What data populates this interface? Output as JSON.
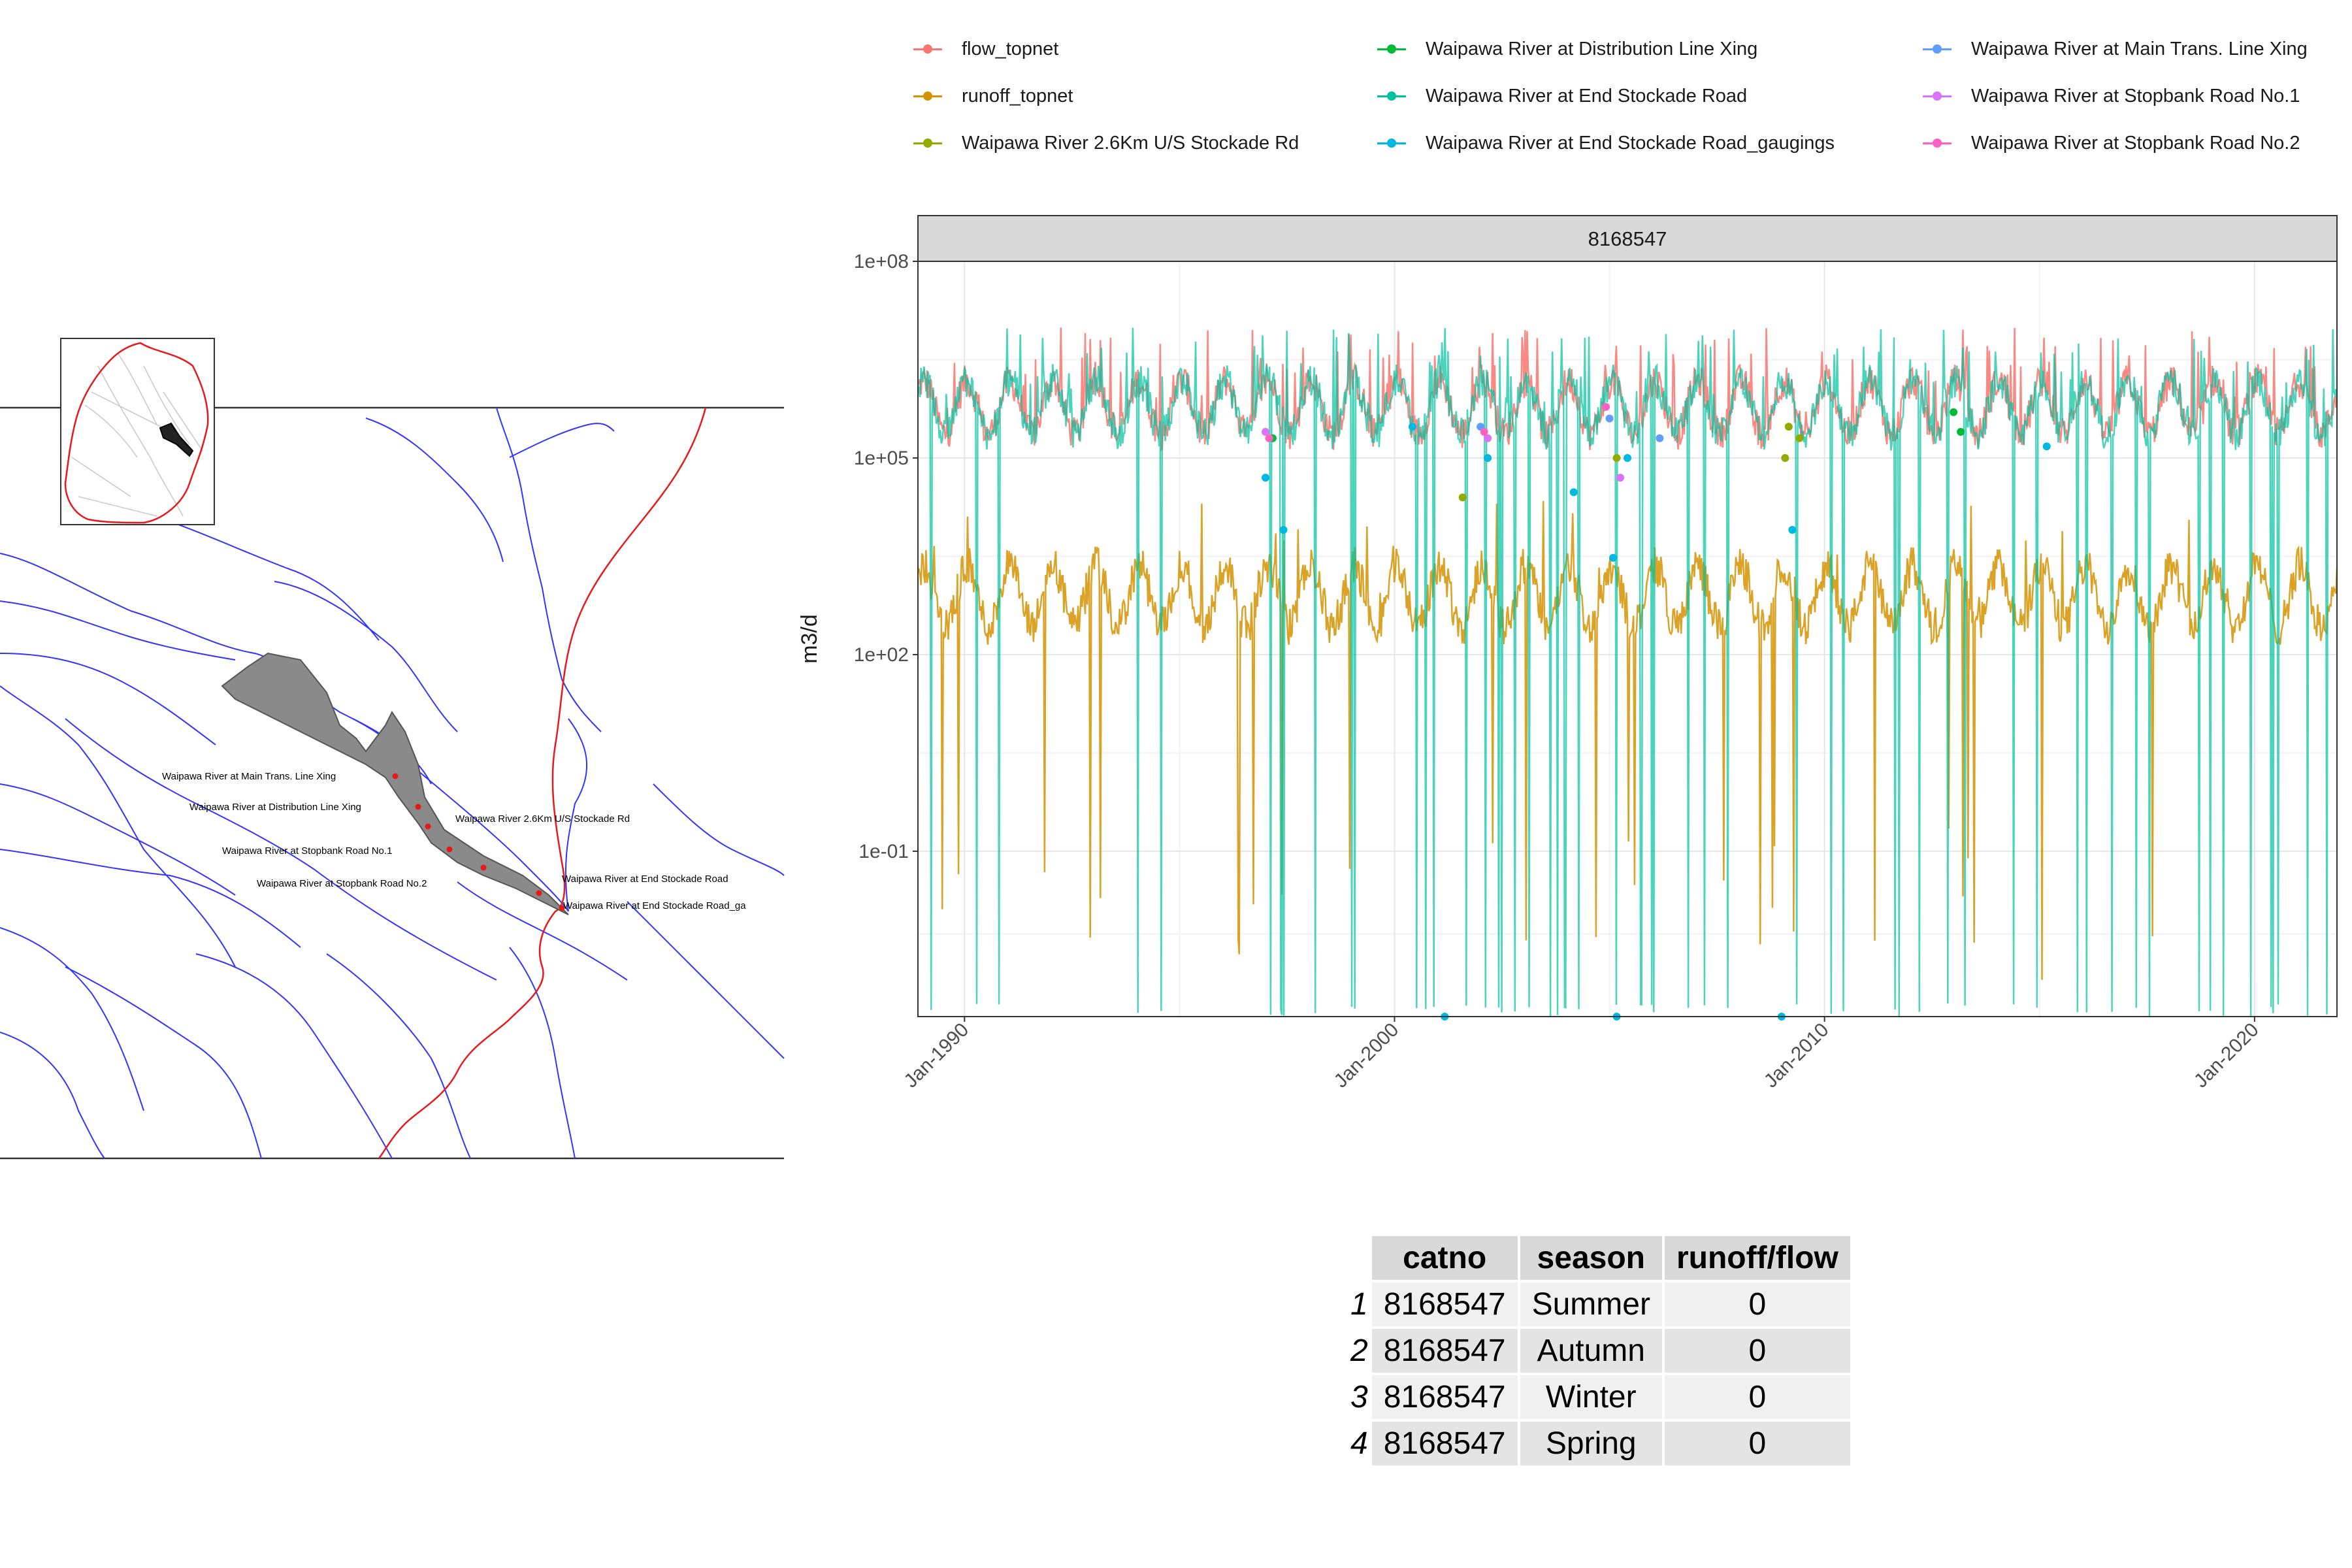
{
  "map": {
    "labels": [
      "Waipawa River at Main Trans. Line Xing",
      "Waipawa River at Distribution Line Xing",
      "Waipawa River 2.6Km U/S Stockade Rd",
      "Waipawa River at Stopbank Road No.1",
      "Waipawa River at Stopbank Road No.2",
      "Waipawa River at End Stockade Road",
      "Waipawa River at End Stockade Road_ga"
    ],
    "colors": {
      "rivers": "#3333ff",
      "boundary": "#e41a1c",
      "catchment": "#808080",
      "sites": "#e41a1c"
    }
  },
  "legend": [
    {
      "label": "flow_topnet",
      "color": "#F8766D"
    },
    {
      "label": "runoff_topnet",
      "color": "#D39200"
    },
    {
      "label": "Waipawa River 2.6Km U/S Stockade Rd",
      "color": "#93AA00"
    },
    {
      "label": "Waipawa River at Distribution Line Xing",
      "color": "#00BA38"
    },
    {
      "label": "Waipawa River at End Stockade Road",
      "color": "#00C19F"
    },
    {
      "label": "Waipawa River at End Stockade Road_gaugings",
      "color": "#00B9E3"
    },
    {
      "label": "Waipawa River at Main Trans. Line Xing",
      "color": "#619CFF"
    },
    {
      "label": "Waipawa River at Stopbank Road No.1",
      "color": "#DB72FB"
    },
    {
      "label": "Waipawa River at Stopbank Road No.2",
      "color": "#FF61C3"
    }
  ],
  "chart_data": {
    "type": "line",
    "facet_label": "8168547",
    "ylabel": "m3/d",
    "xlabel": "",
    "y_scale": "log10",
    "ylim": [
      0.0003,
      100000000
    ],
    "yticks": [
      0.1,
      100,
      100000,
      100000000
    ],
    "ytick_labels": [
      "1e-01",
      "1e+02",
      "1e+05",
      "1e+08"
    ],
    "x_start": "1988-12",
    "x_end": "2021-12",
    "xticks": [
      "1990-01",
      "2000-01",
      "2010-01",
      "2020-01"
    ],
    "xtick_labels": [
      "Jan-1990",
      "Jan-2000",
      "Jan-2010",
      "Jan-2020"
    ],
    "grid": true,
    "legend_position": "top",
    "series": [
      {
        "name": "flow_topnet",
        "typical_range": [
          100000,
          3000000
        ],
        "peak": 10000000
      },
      {
        "name": "runoff_topnet",
        "typical_range": [
          100,
          5000
        ],
        "min": 0.001
      },
      {
        "name": "Waipawa River at End Stockade Road",
        "typical_range": [
          100000,
          3000000
        ],
        "min": 0.0003,
        "peak": 10000000
      }
    ],
    "gaugings": [
      {
        "series": "Waipawa River 2.6Km U/S Stockade Rd",
        "points": [
          [
            "2001-08",
            25000
          ],
          [
            "2005-03",
            100000
          ],
          [
            "2009-02",
            100000
          ],
          [
            "2009-03",
            300000
          ],
          [
            "2009-06",
            200000
          ]
        ]
      },
      {
        "series": "Waipawa River at Distribution Line Xing",
        "points": [
          [
            "1997-03",
            200000
          ],
          [
            "2013-01",
            500000
          ],
          [
            "2013-03",
            250000
          ]
        ]
      },
      {
        "series": "Waipawa River at End Stockade Road_gaugings",
        "points": [
          [
            "1997-01",
            50000
          ],
          [
            "1997-06",
            8000
          ],
          [
            "2000-06",
            300000
          ],
          [
            "2002-03",
            100000
          ],
          [
            "2004-03",
            30000
          ],
          [
            "2005-02",
            3000
          ],
          [
            "2005-06",
            100000
          ],
          [
            "2009-04",
            8000
          ],
          [
            "2015-03",
            150000
          ],
          [
            "2001-03",
            0.0003
          ],
          [
            "2005-03",
            0.0003
          ],
          [
            "2009-01",
            0.0003
          ]
        ]
      },
      {
        "series": "Waipawa River at Main Trans. Line Xing",
        "points": [
          [
            "2002-01",
            300000
          ],
          [
            "2005-01",
            400000
          ],
          [
            "2006-03",
            200000
          ]
        ]
      },
      {
        "series": "Waipawa River at Stopbank Road No.1",
        "points": [
          [
            "1997-01",
            250000
          ],
          [
            "2002-03",
            200000
          ],
          [
            "2005-04",
            50000
          ]
        ]
      },
      {
        "series": "Waipawa River at Stopbank Road No.2",
        "points": [
          [
            "1997-02",
            200000
          ],
          [
            "2002-02",
            250000
          ],
          [
            "2004-12",
            600000
          ]
        ]
      }
    ]
  },
  "table": {
    "headers": [
      "catno",
      "season",
      "runoff/flow"
    ],
    "rows": [
      {
        "idx": "1",
        "catno": "8168547",
        "season": "Summer",
        "ratio": "0"
      },
      {
        "idx": "2",
        "catno": "8168547",
        "season": "Autumn",
        "ratio": "0"
      },
      {
        "idx": "3",
        "catno": "8168547",
        "season": "Winter",
        "ratio": "0"
      },
      {
        "idx": "4",
        "catno": "8168547",
        "season": "Spring",
        "ratio": "0"
      }
    ]
  }
}
